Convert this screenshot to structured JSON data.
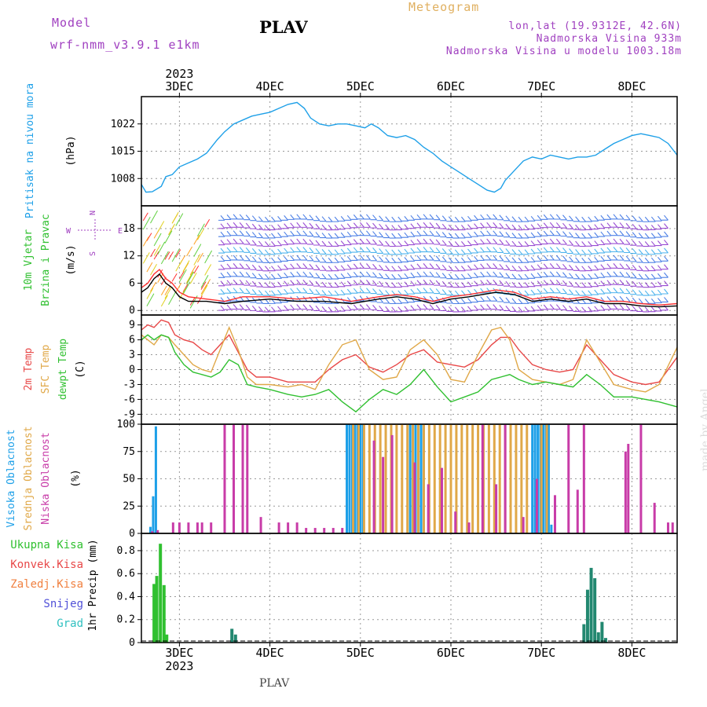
{
  "header": {
    "model_label": "Model",
    "model_name": "wrf-nmm_v3.9.1  e1km",
    "station": "PLAV",
    "title": "Meteogram",
    "lonlat": "lon,lat (19.9312E, 42.6N)",
    "elevation": "Nadmorska Visina 933m",
    "model_elevation": "Nadmorska Visina u modelu 1003.18m"
  },
  "footer": {
    "station": "PLAV"
  },
  "watermark": "made by Angel",
  "chart_data": [
    {
      "type": "line",
      "panel": "pressure",
      "ylabel": "Pritisak na nivou mora",
      "unit": "(hPa)",
      "yticks": [
        1008,
        1015,
        1022
      ],
      "ylim": [
        1001,
        1029
      ],
      "x_unit": "day of month (Dec 2023)",
      "xlim": [
        2.58,
        8.5
      ],
      "xticks": [
        "3DEC",
        "4DEC",
        "5DEC",
        "6DEC",
        "7DEC",
        "8DEC"
      ],
      "top_year": "2023",
      "series": [
        {
          "color": "#1ea0e8",
          "x": [
            2.58,
            2.63,
            2.7,
            2.8,
            2.85,
            2.92,
            3.0,
            3.1,
            3.2,
            3.3,
            3.42,
            3.5,
            3.6,
            3.7,
            3.8,
            3.9,
            4.0,
            4.1,
            4.2,
            4.3,
            4.38,
            4.45,
            4.55,
            4.65,
            4.75,
            4.85,
            4.95,
            5.05,
            5.12,
            5.2,
            5.3,
            5.4,
            5.5,
            5.6,
            5.7,
            5.8,
            5.9,
            6.0,
            6.1,
            6.2,
            6.3,
            6.4,
            6.48,
            6.55,
            6.6,
            6.7,
            6.8,
            6.9,
            7.0,
            7.1,
            7.2,
            7.3,
            7.4,
            7.5,
            7.6,
            7.7,
            7.8,
            7.9,
            8.0,
            8.1,
            8.2,
            8.3,
            8.4,
            8.5
          ],
          "y": [
            1006.5,
            1004.5,
            1004.6,
            1006,
            1008.5,
            1009,
            1011,
            1012,
            1013,
            1014.5,
            1018,
            1020,
            1022,
            1023,
            1024,
            1024.5,
            1025,
            1026,
            1027,
            1027.5,
            1026,
            1023.5,
            1022,
            1021.5,
            1022,
            1022,
            1021.5,
            1021,
            1022,
            1021,
            1019,
            1018.5,
            1019,
            1018,
            1016,
            1014.5,
            1012.5,
            1011,
            1009.5,
            1008,
            1006.5,
            1005,
            1004.5,
            1005.5,
            1007.5,
            1010,
            1012.5,
            1013.5,
            1013,
            1014,
            1013.5,
            1013,
            1013.5,
            1013.5,
            1014,
            1015.5,
            1017,
            1018,
            1019,
            1019.5,
            1019,
            1018.5,
            1017,
            1014
          ]
        }
      ]
    },
    {
      "type": "line",
      "panel": "wind",
      "ylabel": "10m Vjetar Brzina i Pravac",
      "unit": "(m/s)",
      "compass": {
        "north": "N",
        "south": "S",
        "east": "E",
        "west": "W"
      },
      "yticks": [
        0,
        6,
        12,
        18
      ],
      "ylim": [
        -1,
        23
      ],
      "xlim": [
        2.58,
        8.5
      ],
      "series": [
        {
          "color": "#000000",
          "x": [
            2.58,
            2.65,
            2.72,
            2.78,
            2.85,
            2.92,
            3.0,
            3.1,
            3.3,
            3.5,
            3.7,
            4.0,
            4.3,
            4.6,
            4.9,
            5.2,
            5.4,
            5.6,
            5.8,
            6.0,
            6.2,
            6.5,
            6.7,
            6.9,
            7.1,
            7.3,
            7.5,
            7.7,
            7.9,
            8.1,
            8.3,
            8.5
          ],
          "y": [
            4,
            5,
            7,
            8,
            6,
            5,
            3,
            2,
            2,
            1.5,
            2,
            2.5,
            2,
            2,
            1.5,
            2.5,
            3,
            2.5,
            1.5,
            2.5,
            3,
            4,
            3.5,
            2,
            2.5,
            2,
            2.5,
            1.5,
            1.5,
            1,
            0.8,
            1
          ]
        },
        {
          "color": "#ff3030",
          "x": [
            2.58,
            2.65,
            2.72,
            2.78,
            2.85,
            2.92,
            3.0,
            3.1,
            3.3,
            3.5,
            3.7,
            4.0,
            4.3,
            4.6,
            4.9,
            5.2,
            5.4,
            5.6,
            5.8,
            6.0,
            6.2,
            6.5,
            6.7,
            6.9,
            7.1,
            7.3,
            7.5,
            7.7,
            7.9,
            8.1,
            8.3,
            8.5
          ],
          "y": [
            5,
            6,
            8,
            9,
            7,
            6,
            4,
            3,
            2.5,
            2,
            3,
            3,
            2.5,
            3,
            2,
            3,
            3.5,
            3,
            2,
            3,
            3.5,
            4.5,
            4,
            2.5,
            3,
            2.5,
            3,
            2,
            2,
            1.5,
            1.2,
            1.5
          ]
        }
      ]
    },
    {
      "type": "line",
      "panel": "temperature",
      "ylabel": [
        "2m Temp",
        "SFC Temp",
        "dewpt Temp"
      ],
      "unit": "(C)",
      "yticks": [
        -9,
        -6,
        -3,
        0,
        3,
        6,
        9
      ],
      "ylim": [
        -11,
        11
      ],
      "xlim": [
        2.58,
        8.5
      ],
      "series": [
        {
          "color": "#e84848",
          "x": [
            2.58,
            2.65,
            2.72,
            2.8,
            2.88,
            2.95,
            3.05,
            3.15,
            3.25,
            3.35,
            3.45,
            3.55,
            3.65,
            3.75,
            3.85,
            4.0,
            4.2,
            4.35,
            4.5,
            4.65,
            4.8,
            4.95,
            5.1,
            5.25,
            5.4,
            5.55,
            5.7,
            5.85,
            6.0,
            6.15,
            6.3,
            6.45,
            6.55,
            6.65,
            6.75,
            6.9,
            7.05,
            7.2,
            7.35,
            7.5,
            7.65,
            7.8,
            8.0,
            8.15,
            8.3,
            8.5
          ],
          "y": [
            8,
            9,
            8.5,
            10,
            9.5,
            7,
            6,
            5.5,
            4,
            3,
            5,
            7,
            3.5,
            0,
            -1.5,
            -1.5,
            -2.5,
            -2.5,
            -2.5,
            0,
            2,
            3,
            0.5,
            -0.5,
            1,
            3,
            4,
            1.5,
            1,
            0.5,
            2,
            5,
            6.5,
            6.5,
            4,
            1,
            0,
            -0.5,
            0,
            5,
            2,
            -1,
            -2.5,
            -3,
            -2.5,
            2.5
          ]
        },
        {
          "color": "#e0a848",
          "x": [
            2.58,
            2.65,
            2.72,
            2.8,
            2.88,
            2.95,
            3.05,
            3.15,
            3.25,
            3.35,
            3.45,
            3.55,
            3.65,
            3.75,
            3.85,
            4.0,
            4.2,
            4.35,
            4.5,
            4.65,
            4.8,
            4.95,
            5.1,
            5.25,
            5.4,
            5.55,
            5.7,
            5.85,
            6.0,
            6.15,
            6.3,
            6.45,
            6.55,
            6.65,
            6.75,
            6.9,
            7.05,
            7.2,
            7.35,
            7.5,
            7.65,
            7.8,
            8.0,
            8.15,
            8.3,
            8.5
          ],
          "y": [
            7,
            6,
            5,
            7,
            6.5,
            5,
            3,
            1,
            0,
            -0.5,
            4,
            8.5,
            4,
            -1.5,
            -3,
            -3,
            -3.5,
            -3,
            -4,
            1,
            5,
            6,
            0,
            -2,
            -1.5,
            4,
            6,
            3,
            -2,
            -2.5,
            3,
            8,
            8.5,
            6,
            0,
            -2,
            -2.5,
            -3,
            -2,
            6,
            1.5,
            -3,
            -4,
            -4.5,
            -3,
            4.5
          ]
        },
        {
          "color": "#30c030",
          "x": [
            2.58,
            2.65,
            2.72,
            2.8,
            2.88,
            2.95,
            3.05,
            3.15,
            3.25,
            3.35,
            3.45,
            3.55,
            3.65,
            3.75,
            3.85,
            4.0,
            4.2,
            4.35,
            4.5,
            4.65,
            4.8,
            4.95,
            5.1,
            5.25,
            5.4,
            5.55,
            5.7,
            5.85,
            6.0,
            6.15,
            6.3,
            6.45,
            6.55,
            6.65,
            6.75,
            6.9,
            7.05,
            7.2,
            7.35,
            7.5,
            7.65,
            7.8,
            8.0,
            8.15,
            8.3,
            8.5
          ],
          "y": [
            6,
            7,
            6,
            7,
            6.5,
            3.5,
            1,
            -0.5,
            -1,
            -1.5,
            -0.5,
            2,
            1,
            -3,
            -3.5,
            -4,
            -5,
            -5.5,
            -5,
            -4,
            -6.5,
            -8.5,
            -6,
            -4,
            -5,
            -3,
            0,
            -3.5,
            -6.5,
            -5.5,
            -4.5,
            -2,
            -1.5,
            -1,
            -2,
            -3,
            -2.5,
            -3,
            -3.5,
            -1,
            -3,
            -5.5,
            -5.5,
            -6,
            -6.5,
            -7.5
          ]
        }
      ]
    },
    {
      "type": "bar",
      "panel": "cloud",
      "ylabel": [
        "Visoka Oblacnost",
        "Srednja Oblacnost",
        "Niska Oblacnost"
      ],
      "unit": "(%)",
      "yticks": [
        0,
        25,
        50,
        75,
        100
      ],
      "ylim": [
        0,
        100
      ],
      "xlim": [
        2.58,
        8.5
      ],
      "series": [
        {
          "color": "#1ea0e8",
          "x": [
            2.68,
            2.71,
            2.74,
            4.85,
            4.88,
            4.91,
            4.94,
            4.97,
            5.0,
            5.03,
            5.55,
            5.58,
            5.61,
            5.64,
            5.67,
            5.7,
            6.9,
            6.93,
            6.96,
            6.99,
            7.02,
            7.05,
            7.08,
            7.11
          ],
          "values": [
            6,
            34,
            98,
            100,
            100,
            100,
            100,
            100,
            100,
            100,
            100,
            100,
            100,
            100,
            100,
            100,
            100,
            100,
            100,
            100,
            100,
            100,
            100,
            8
          ]
        },
        {
          "color": "#e0a848",
          "x": [
            4.92,
            4.98,
            5.04,
            5.1,
            5.16,
            5.22,
            5.28,
            5.34,
            5.4,
            5.46,
            5.52,
            5.58,
            5.64,
            5.7,
            5.76,
            5.82,
            5.88,
            5.94,
            6.0,
            6.06,
            6.12,
            6.18,
            6.24,
            6.3,
            6.36,
            6.42,
            6.48,
            6.54,
            6.6,
            6.66,
            6.72,
            6.78,
            6.84,
            7.0,
            7.06
          ],
          "values": [
            100,
            100,
            100,
            100,
            100,
            100,
            100,
            100,
            100,
            100,
            100,
            100,
            100,
            100,
            100,
            100,
            100,
            100,
            100,
            100,
            100,
            100,
            100,
            100,
            100,
            100,
            100,
            100,
            100,
            100,
            100,
            100,
            100,
            100,
            100
          ]
        },
        {
          "color": "#c83ca8",
          "x": [
            2.7,
            2.76,
            2.93,
            3.0,
            3.1,
            3.2,
            3.25,
            3.35,
            3.5,
            3.6,
            3.7,
            3.75,
            3.9,
            4.1,
            4.2,
            4.3,
            4.4,
            4.5,
            4.6,
            4.7,
            4.8,
            5.15,
            5.25,
            5.35,
            5.6,
            5.75,
            5.9,
            6.05,
            6.2,
            6.35,
            6.5,
            6.6,
            6.8,
            6.95,
            7.15,
            7.3,
            7.4,
            7.47,
            7.93,
            7.96,
            8.1,
            8.25,
            8.4,
            8.45
          ],
          "values": [
            2,
            3,
            10,
            10,
            10,
            10,
            10,
            10,
            100,
            100,
            100,
            100,
            15,
            10,
            10,
            10,
            5,
            5,
            5,
            5,
            5,
            85,
            70,
            90,
            65,
            45,
            60,
            20,
            10,
            100,
            45,
            100,
            15,
            50,
            35,
            100,
            40,
            100,
            75,
            82,
            100,
            28,
            10,
            10
          ]
        }
      ]
    },
    {
      "type": "bar",
      "panel": "precip",
      "ylabel": "1hr Precip",
      "unit": "(mm)",
      "legend": [
        "Ukupna Kisa",
        "Konvek.Kisa",
        "Zaledj.Kisa",
        "Snijeg",
        "Grad"
      ],
      "legend_colors": [
        "#30c030",
        "#e84848",
        "#f08040",
        "#5050d8",
        "#30c0c0"
      ],
      "yticks": [
        0,
        0.2,
        0.4,
        0.6,
        0.8
      ],
      "ylim": [
        0,
        0.95
      ],
      "xlim": [
        2.58,
        8.5
      ],
      "series": [
        {
          "color": "#30c030",
          "x": [
            2.72,
            2.75,
            2.79,
            2.83,
            2.86
          ],
          "values": [
            0.51,
            0.58,
            0.86,
            0.5,
            0.07
          ]
        },
        {
          "color": "#228870",
          "x": [
            3.58,
            3.62,
            7.47,
            7.51,
            7.55,
            7.59,
            7.63,
            7.67,
            7.71
          ],
          "values": [
            0.12,
            0.07,
            0.16,
            0.46,
            0.65,
            0.56,
            0.09,
            0.18,
            0.04
          ]
        }
      ]
    }
  ]
}
